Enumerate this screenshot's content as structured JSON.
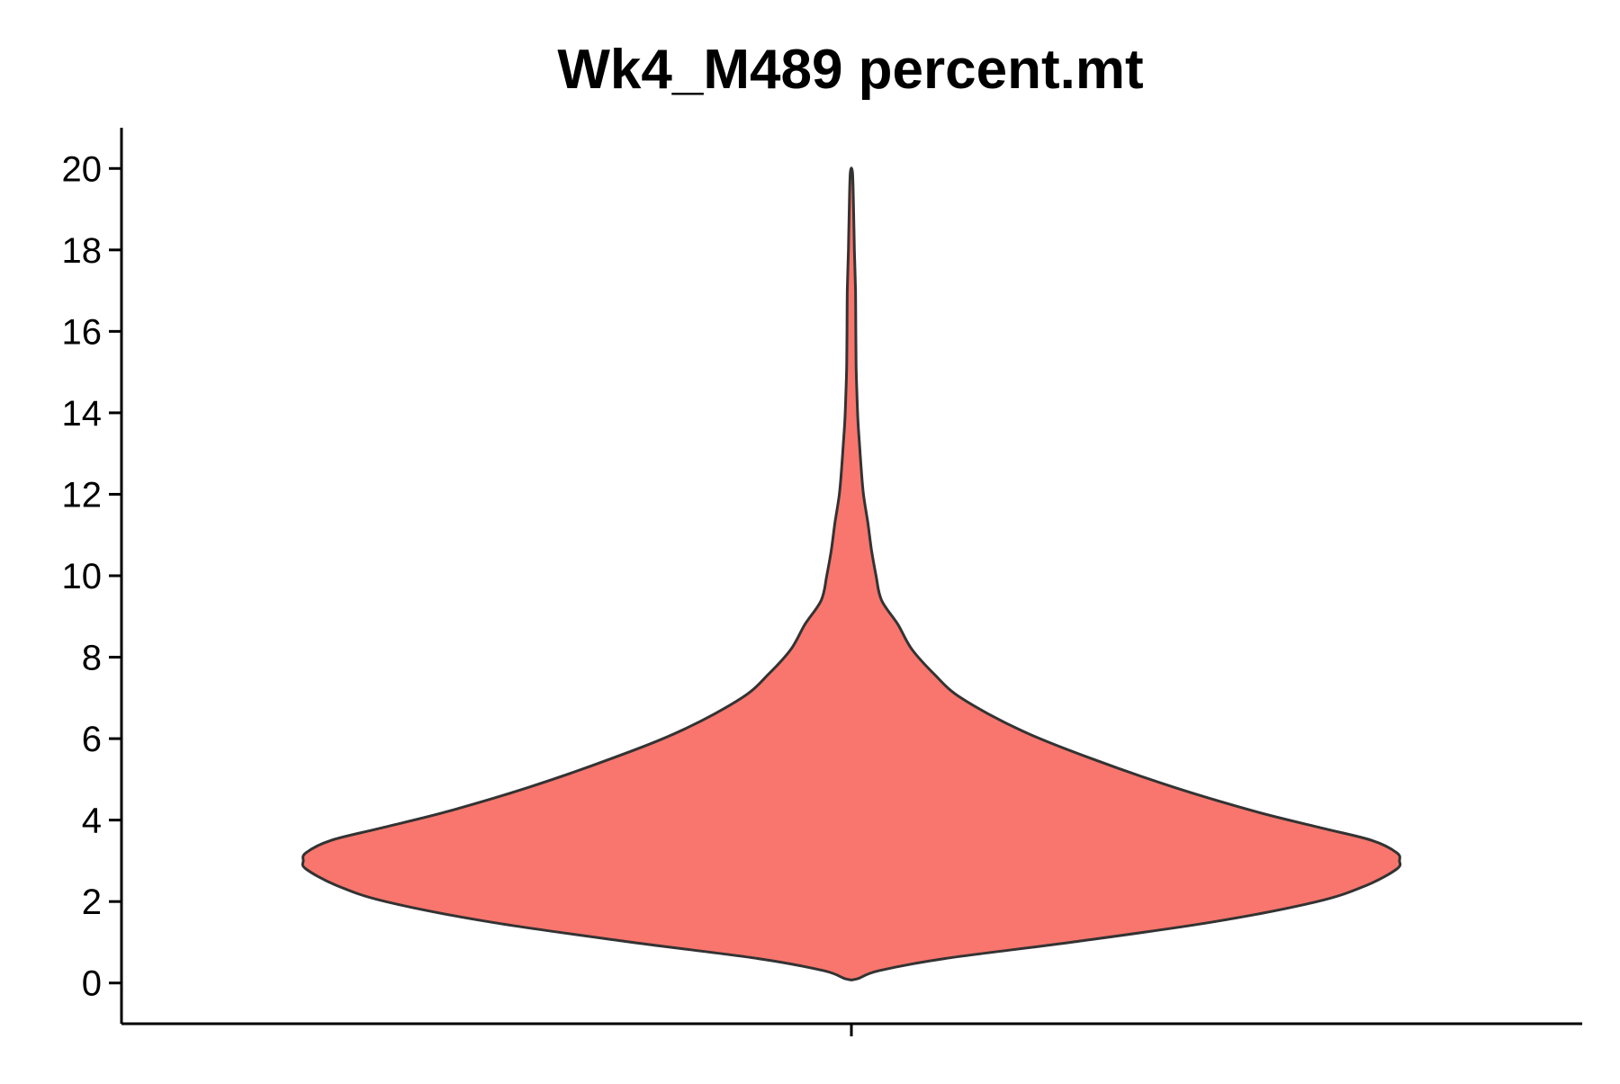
{
  "chart_data": {
    "type": "violin",
    "title": "Wk4_M489 percent.mt",
    "xlabel": "",
    "ylabel": "",
    "ylim": [
      -1,
      21
    ],
    "yticks": [
      "0",
      "2",
      "4",
      "6",
      "8",
      "10",
      "12",
      "14",
      "16",
      "18",
      "20"
    ],
    "fill_color": "#F8766D",
    "outline_color": "#333333",
    "grid": false,
    "legend": "none",
    "density_profile": [
      [
        0.1,
        0.01
      ],
      [
        0.3,
        0.05
      ],
      [
        0.6,
        0.17
      ],
      [
        1.0,
        0.4
      ],
      [
        1.5,
        0.66
      ],
      [
        2.0,
        0.85
      ],
      [
        2.4,
        0.94
      ],
      [
        2.8,
        0.995
      ],
      [
        3.0,
        1.0
      ],
      [
        3.2,
        0.995
      ],
      [
        3.5,
        0.95
      ],
      [
        3.8,
        0.86
      ],
      [
        4.2,
        0.74
      ],
      [
        4.8,
        0.59
      ],
      [
        5.5,
        0.44
      ],
      [
        6.2,
        0.31
      ],
      [
        7.0,
        0.2
      ],
      [
        7.6,
        0.15
      ],
      [
        8.2,
        0.11
      ],
      [
        8.8,
        0.085
      ],
      [
        9.4,
        0.055
      ],
      [
        10.0,
        0.045
      ],
      [
        10.6,
        0.037
      ],
      [
        11.3,
        0.03
      ],
      [
        12.0,
        0.022
      ],
      [
        12.6,
        0.018
      ],
      [
        13.2,
        0.015
      ],
      [
        13.8,
        0.012
      ],
      [
        14.5,
        0.01
      ],
      [
        15.2,
        0.0085
      ],
      [
        16.0,
        0.008
      ],
      [
        17.0,
        0.0075
      ],
      [
        18.0,
        0.0055
      ],
      [
        19.0,
        0.004
      ],
      [
        19.9,
        0.002
      ]
    ]
  }
}
